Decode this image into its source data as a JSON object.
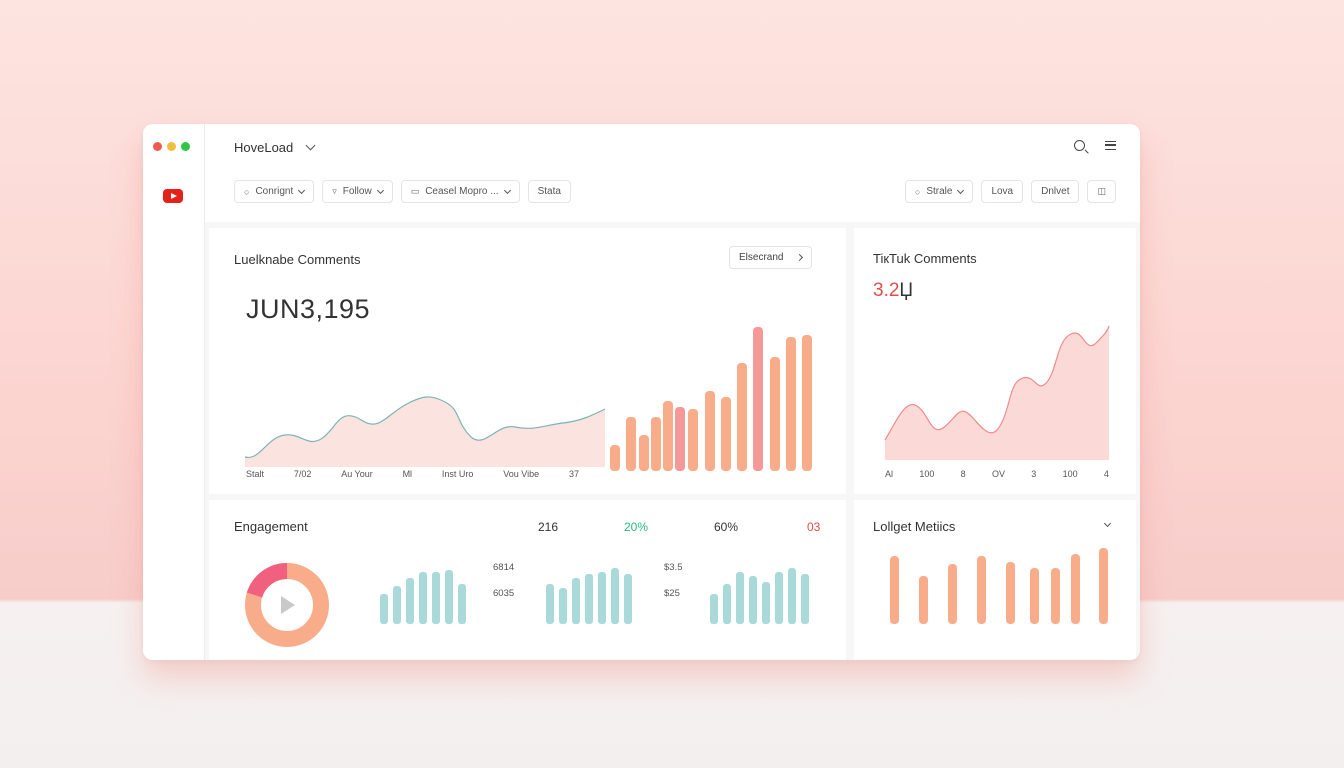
{
  "window": {
    "traffic_colors": [
      "#ed5a52",
      "#f4bd3f",
      "#33c548"
    ],
    "logo_icon": "youtube-icon"
  },
  "topbar": {
    "title": "HoveLoad",
    "icons": [
      "search-icon",
      "menu-icon"
    ]
  },
  "filters_left": [
    {
      "icon": "pin-icon",
      "label": "Conrignt"
    },
    {
      "icon": "filter-icon",
      "label": "Follow"
    },
    {
      "icon": "folder-icon",
      "label": "Ceasel Mopro ..."
    },
    {
      "icon": "",
      "label": "Stata"
    }
  ],
  "filters_right": [
    {
      "icon": "circle-icon",
      "label": "Strale"
    },
    {
      "label": "Lova"
    },
    {
      "label": "Dnlvet"
    },
    {
      "icon": "columns-icon",
      "label": ""
    }
  ],
  "youtube_card": {
    "title": "Luelknabe Comments",
    "value": "JUN3,195",
    "button_label": "Elsecrand",
    "x_labels": [
      "Stalt",
      "7/02",
      "Au Your",
      "Ml",
      "Inst Uro",
      "Vou Vibe",
      "37"
    ],
    "colors": {
      "area": "#fbe3df",
      "line": "#7fb3b6",
      "bar": "#f9ac8a",
      "bar_pink": "#f59898"
    }
  },
  "tiktok_card": {
    "title": "TiкTuk Comments",
    "value_red": "3.2",
    "value_rest": "Џ",
    "x_labels": [
      "Al",
      "100",
      "8",
      "OV",
      "3",
      "100",
      "4"
    ],
    "colors": {
      "area": "#fad9d6",
      "line": "#ef8c8e"
    }
  },
  "engagement_card": {
    "title": "Engagement",
    "metrics": [
      {
        "label": "216",
        "color": "#333333"
      },
      {
        "label": "20%",
        "color": "#2fb97e"
      },
      {
        "label": "60%",
        "color": "#333333"
      },
      {
        "label": "03",
        "color": "#e34b4b"
      }
    ],
    "mini_labels": [
      "6814",
      "6035",
      "$3.5",
      "$25"
    ],
    "donut_colors": [
      "#f2607f",
      "#f9ac8a"
    ],
    "bar_color": "#a9dad9"
  },
  "metrics_card": {
    "title": "Lollget Metiics",
    "bar_color": "#f9ac8a"
  }
}
